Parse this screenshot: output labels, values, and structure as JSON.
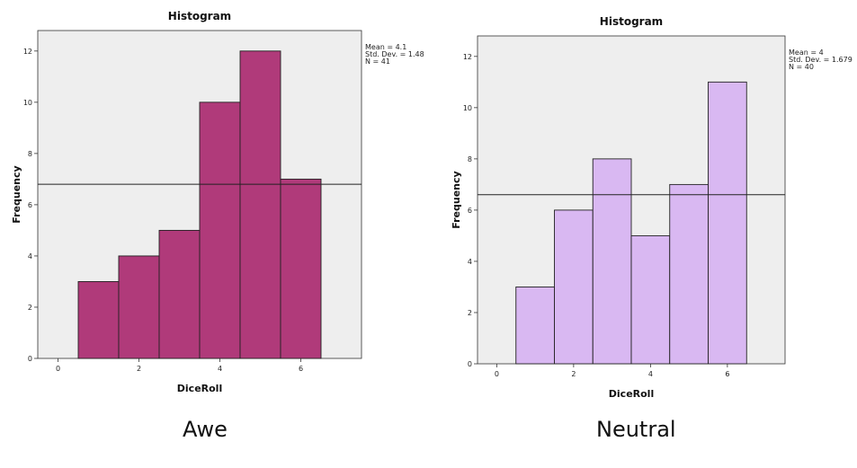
{
  "chart_data": [
    {
      "type": "bar",
      "title": "Histogram",
      "xlabel": "DiceRoll",
      "ylabel": "Frequency",
      "caption": "Awe",
      "bar_color": "#b03a7a",
      "categories": [
        1,
        2,
        3,
        4,
        5,
        6
      ],
      "values": [
        3,
        4,
        5,
        10,
        12,
        7
      ],
      "reference_line": 6.8,
      "xlim": [
        -0.5,
        7.5
      ],
      "ylim": [
        0,
        12.8
      ],
      "x_ticks": [
        0,
        2,
        4,
        6
      ],
      "y_ticks": [
        0,
        2,
        4,
        6,
        8,
        10,
        12
      ],
      "stats": [
        "Mean = 4.1",
        "Std. Dev. = 1.48",
        "N = 41"
      ],
      "grid": false
    },
    {
      "type": "bar",
      "title": "Histogram",
      "xlabel": "DiceRoll",
      "ylabel": "Frequency",
      "caption": "Neutral",
      "bar_color": "#d9b8f2",
      "categories": [
        1,
        2,
        3,
        4,
        5,
        6
      ],
      "values": [
        3,
        6,
        8,
        5,
        7,
        11
      ],
      "reference_line": 6.6,
      "xlim": [
        -0.5,
        7.5
      ],
      "ylim": [
        0,
        12.8
      ],
      "x_ticks": [
        0,
        2,
        4,
        6
      ],
      "y_ticks": [
        0,
        2,
        4,
        6,
        8,
        10,
        12
      ],
      "stats": [
        "Mean = 4",
        "Std. Dev. = 1.679",
        "N = 40"
      ],
      "grid": false
    }
  ]
}
